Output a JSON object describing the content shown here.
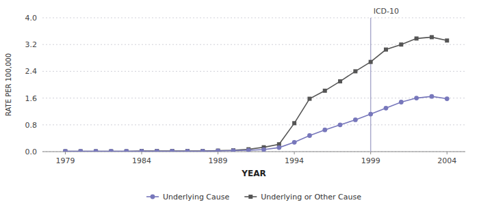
{
  "chart_data": {
    "type": "line",
    "xlabel": "YEAR",
    "ylabel": "RATE PER 100,000",
    "x": [
      1979,
      1980,
      1981,
      1982,
      1983,
      1984,
      1985,
      1986,
      1987,
      1988,
      1989,
      1990,
      1991,
      1992,
      1993,
      1994,
      1995,
      1996,
      1997,
      1998,
      1999,
      2000,
      2001,
      2002,
      2003,
      2004
    ],
    "series": [
      {
        "name": "Underlying or Other Cause",
        "color": "#555555",
        "marker": "square",
        "values": [
          0.01,
          0.01,
          0.01,
          0.01,
          0.01,
          0.02,
          0.02,
          0.02,
          0.02,
          0.02,
          0.03,
          0.04,
          0.07,
          0.13,
          0.22,
          0.85,
          1.58,
          1.82,
          2.1,
          2.4,
          2.68,
          3.05,
          3.2,
          3.38,
          3.42,
          3.32
        ]
      },
      {
        "name": "Underlying Cause",
        "color": "#7777bb",
        "marker": "circle",
        "values": [
          0.01,
          0.01,
          0.01,
          0.01,
          0.01,
          0.01,
          0.01,
          0.01,
          0.01,
          0.01,
          0.02,
          0.03,
          0.04,
          0.06,
          0.12,
          0.28,
          0.48,
          0.65,
          0.8,
          0.95,
          1.12,
          1.3,
          1.48,
          1.6,
          1.65,
          1.58
        ]
      }
    ],
    "annotations": [
      {
        "text": "ICD-10",
        "x": 1999,
        "color": "#aaaacc"
      }
    ],
    "xlim": [
      1977.5,
      2005.2
    ],
    "xticks": [
      1979,
      1984,
      1989,
      1994,
      1999,
      2004
    ],
    "ylim": [
      0.0,
      4.0
    ],
    "yticks": [
      {
        "value": 0.0,
        "label": "0.0"
      },
      0.8,
      1.6,
      2.4,
      3.2,
      {
        "value": 4.0,
        "label": "4.0"
      }
    ],
    "grid": true,
    "legend": "bottom"
  }
}
